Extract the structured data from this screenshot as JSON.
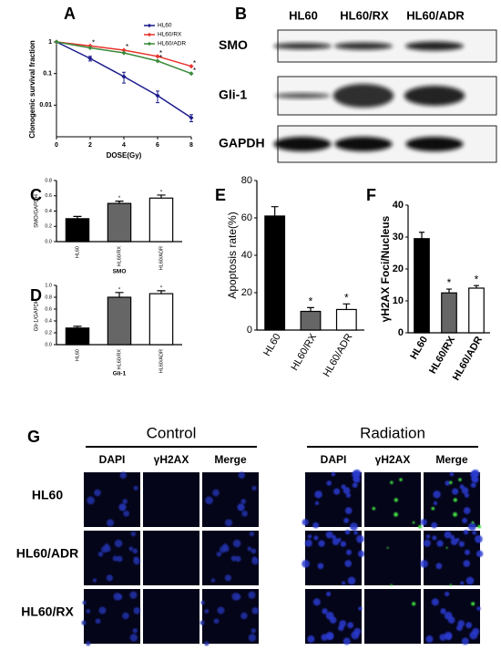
{
  "chart_data": [
    {
      "type": "line",
      "panel": "A",
      "ylabel": "Clonogenic survival fraction",
      "xlabel": "DOSE(Gy)",
      "x": [
        0,
        2,
        4,
        6,
        8
      ],
      "xlim": [
        0,
        8
      ],
      "xticks": [
        0,
        2,
        4,
        6,
        8
      ],
      "log_y": true,
      "ylim": [
        0.001,
        1
      ],
      "yticks": [
        0.01,
        0.1,
        1
      ],
      "legend": "upper right",
      "series": [
        {
          "name": "HL60",
          "color": "#1a1a8c",
          "values": [
            1,
            0.3,
            0.08,
            0.02,
            0.004
          ],
          "errors": [
            0,
            0.05,
            0.03,
            0.008,
            0.001
          ]
        },
        {
          "name": "HL60/RX",
          "color": "#e8322a",
          "values": [
            1,
            0.75,
            0.55,
            0.35,
            0.17
          ]
        },
        {
          "name": "HL60/ADR",
          "color": "#3a8a3a",
          "values": [
            1,
            0.65,
            0.45,
            0.25,
            0.1
          ]
        }
      ],
      "annotations": [
        {
          "series": "HL60/RX",
          "x": 2,
          "text": "*"
        },
        {
          "series": "HL60/RX",
          "x": 4,
          "text": "*"
        },
        {
          "series": "HL60/RX",
          "x": 6,
          "text": "*"
        },
        {
          "series": "HL60/RX",
          "x": 8,
          "text": "*"
        },
        {
          "series": "HL60/ADR",
          "x": 6,
          "text": "*"
        },
        {
          "series": "HL60/ADR",
          "x": 8,
          "text": "*"
        }
      ]
    },
    {
      "type": "bar",
      "panel": "C",
      "ylabel": "SMO/GAPDH",
      "xlabel": "SMO",
      "categories": [
        "HL60",
        "HL60/RX",
        "HL60/ADR"
      ],
      "values": [
        0.3,
        0.5,
        0.57
      ],
      "errors": [
        0.03,
        0.03,
        0.04
      ],
      "colors": [
        "#000000",
        "#666666",
        "#ffffff"
      ],
      "ylim": [
        0,
        0.8
      ],
      "yticks": [
        {
          "value": 0,
          "label": "0.0"
        },
        0.2,
        0.4,
        0.6,
        0.8
      ],
      "annotations": [
        {
          "category": "HL60/RX",
          "text": "*"
        },
        {
          "category": "HL60/ADR",
          "text": "*"
        }
      ]
    },
    {
      "type": "bar",
      "panel": "D",
      "ylabel": "Gli-1/GAPDH",
      "xlabel": "Gli-1",
      "categories": [
        "HL60",
        "HL60/RX",
        "HL60/ADR"
      ],
      "values": [
        0.28,
        0.8,
        0.86
      ],
      "errors": [
        0.03,
        0.08,
        0.05
      ],
      "colors": [
        "#000000",
        "#666666",
        "#ffffff"
      ],
      "ylim": [
        0,
        1.0
      ],
      "yticks": [
        {
          "value": 0,
          "label": "0.0"
        },
        0.2,
        0.4,
        0.6,
        0.8,
        {
          "value": 1,
          "label": "1.0"
        }
      ],
      "annotations": [
        {
          "category": "HL60/RX",
          "text": "*"
        },
        {
          "category": "HL60/ADR",
          "text": "*"
        }
      ]
    },
    {
      "type": "bar",
      "panel": "E",
      "ylabel": "Apoptosis rate(%)",
      "categories": [
        "HL60",
        "HL60/RX",
        "HL60/ADR"
      ],
      "values": [
        61,
        10,
        11
      ],
      "errors": [
        5,
        2,
        3
      ],
      "colors": [
        "#000000",
        "#666666",
        "#ffffff"
      ],
      "ylim": [
        0,
        80
      ],
      "yticks": [
        0,
        20,
        40,
        60,
        80
      ],
      "annotations": [
        {
          "category": "HL60/RX",
          "text": "*"
        },
        {
          "category": "HL60/ADR",
          "text": "*"
        }
      ]
    },
    {
      "type": "bar",
      "panel": "F",
      "ylabel": "γH2AX Foci/Nucleus",
      "categories": [
        "HL60",
        "HL60/RX",
        "HL60/ADR"
      ],
      "values": [
        29.5,
        12.5,
        14
      ],
      "errors": [
        2,
        1.2,
        0.8
      ],
      "colors": [
        "#000000",
        "#666666",
        "#ffffff"
      ],
      "ylim": [
        0,
        40
      ],
      "yticks": [
        0,
        10,
        20,
        30,
        40
      ],
      "annotations": [
        {
          "category": "HL60/RX",
          "text": "*"
        },
        {
          "category": "HL60/ADR",
          "text": "*"
        }
      ]
    }
  ],
  "blot": {
    "panel": "B",
    "columns": [
      "HL60",
      "HL60/RX",
      "HL60/ADR"
    ],
    "rows": [
      "SMO",
      "Gli-1",
      "GAPDH"
    ]
  },
  "microscopy": {
    "panel": "G",
    "groups": [
      {
        "title": "Control",
        "channels": [
          "DAPI",
          "γH2AX",
          "Merge"
        ]
      },
      {
        "title": "Radiation",
        "channels": [
          "DAPI",
          "γH2AX",
          "Merge"
        ]
      }
    ],
    "rows": [
      "HL60",
      "HL60/ADR",
      "HL60/RX"
    ]
  }
}
